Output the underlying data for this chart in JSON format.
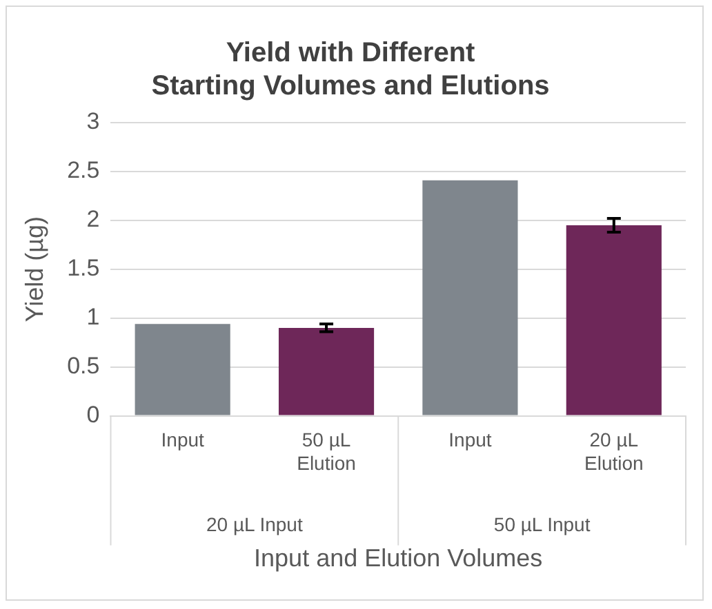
{
  "chart_data": {
    "type": "bar",
    "title": "Yield with Different Starting Volumes and Elutions",
    "xlabel": "Input and Elution Volumes",
    "ylabel": "Yield (µg)",
    "categories": [
      "Input",
      "50 µL Elution",
      "Input",
      "20 µL Elution"
    ],
    "values": [
      0.94,
      0.9,
      2.41,
      1.95
    ],
    "colors": [
      "#7f868d",
      "#6e2759",
      "#7f868d",
      "#6e2759"
    ],
    "errors": [
      null,
      0.04,
      null,
      0.07
    ],
    "annotations": [
      "20 µL Input",
      "50 µL Input"
    ],
    "ylim": [
      0,
      3
    ],
    "yticks": [
      0,
      0.5,
      1,
      1.5,
      2,
      2.5,
      3
    ],
    "grid": "y",
    "legend": false
  }
}
